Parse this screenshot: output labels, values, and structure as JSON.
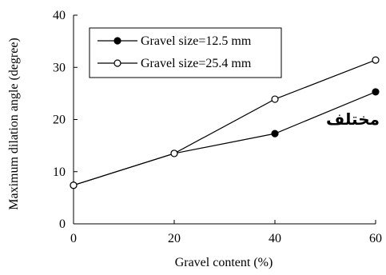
{
  "chart_data": {
    "type": "line",
    "xlabel": "Gravel content (%)",
    "ylabel": "Maximum dilation angle (degree)",
    "xlim": [
      0,
      60
    ],
    "ylim": [
      0,
      40
    ],
    "x_ticks": [
      0,
      20,
      40,
      60
    ],
    "y_ticks": [
      0,
      10,
      20,
      30,
      40
    ],
    "x_tick_labels": [
      "0",
      "20",
      "40",
      "60"
    ],
    "y_tick_labels": [
      "0",
      "10",
      "20",
      "30",
      "40"
    ],
    "grid": false,
    "legend_position": "top-left",
    "series": [
      {
        "name": "Gravel size=12.5 mm",
        "marker": "filled-circle",
        "color": "#000000",
        "x": [
          0,
          20,
          40,
          60
        ],
        "y": [
          7.4,
          13.5,
          17.3,
          25.3
        ]
      },
      {
        "name": "Gravel size=25.4 mm",
        "marker": "open-circle",
        "color": "#000000",
        "x": [
          0,
          20,
          40,
          60
        ],
        "y": [
          7.4,
          13.5,
          23.9,
          31.4
        ]
      }
    ],
    "annotations": [
      {
        "text": "مختلف",
        "x": 60,
        "y": 19
      }
    ]
  }
}
